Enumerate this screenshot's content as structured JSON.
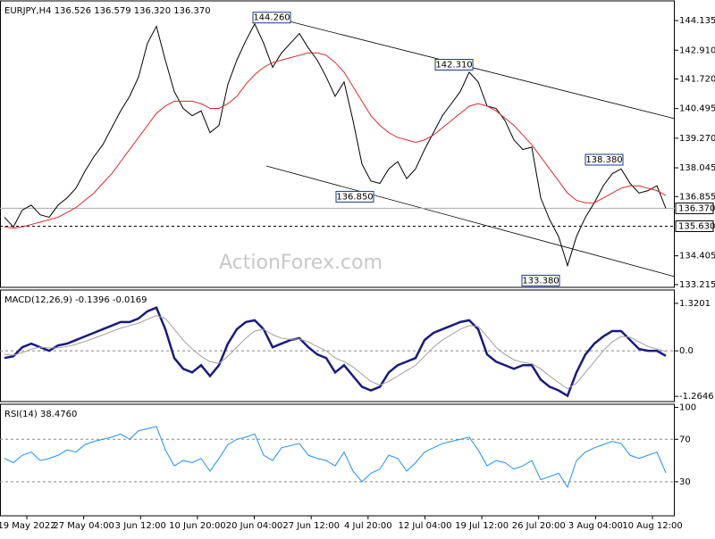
{
  "watermark": "ActionForex.com",
  "chart_data": [
    {
      "type": "line",
      "title": "EURJPY,H4  136.526 136.579 136.320 136.370",
      "ylim": [
        133.1,
        144.95
      ],
      "yticks": [
        144.135,
        {
          "value": 142.91,
          "label": "142.910"
        },
        {
          "value": 141.72,
          "label": "141.720"
        },
        140.495,
        {
          "value": 139.27,
          "label": "139.270"
        },
        138.045,
        136.855,
        134.405,
        133.215
      ],
      "series": [
        {
          "color": "#000000",
          "values": [
            136.0,
            135.6,
            136.3,
            136.5,
            136.1,
            136.0,
            136.5,
            136.8,
            137.2,
            137.9,
            138.5,
            139.0,
            139.7,
            140.4,
            141.0,
            141.8,
            143.2,
            143.9,
            142.5,
            141.2,
            140.5,
            140.2,
            140.4,
            139.5,
            139.8,
            141.5,
            142.5,
            143.3,
            144.0,
            143.2,
            142.2,
            142.8,
            143.2,
            143.6,
            143.0,
            142.5,
            141.8,
            141.0,
            141.6,
            140.0,
            138.2,
            137.5,
            137.4,
            138.0,
            138.3,
            137.6,
            138.0,
            138.8,
            139.5,
            140.2,
            140.7,
            141.2,
            142.0,
            141.6,
            140.6,
            140.5,
            140.0,
            139.2,
            138.8,
            138.9,
            136.8,
            135.9,
            135.2,
            134.0,
            135.2,
            136.0,
            136.6,
            137.3,
            137.8,
            138.0,
            137.4,
            137.0,
            137.1,
            137.3,
            136.37
          ]
        },
        {
          "color": "#e0282c",
          "values": [
            135.6,
            135.55,
            135.6,
            135.7,
            135.8,
            135.9,
            136.0,
            136.2,
            136.4,
            136.7,
            137.0,
            137.4,
            137.8,
            138.3,
            138.8,
            139.3,
            139.8,
            140.3,
            140.6,
            140.8,
            140.8,
            140.8,
            140.7,
            140.5,
            140.5,
            140.7,
            141.0,
            141.5,
            141.9,
            142.2,
            142.4,
            142.5,
            142.6,
            142.7,
            142.8,
            142.8,
            142.7,
            142.4,
            142.0,
            141.4,
            140.8,
            140.2,
            139.8,
            139.5,
            139.3,
            139.2,
            139.1,
            139.2,
            139.4,
            139.7,
            140.0,
            140.3,
            140.6,
            140.7,
            140.6,
            140.4,
            140.1,
            139.8,
            139.4,
            139.0,
            138.5,
            138.0,
            137.5,
            137.0,
            136.7,
            136.6,
            136.6,
            136.8,
            137.0,
            137.2,
            137.3,
            137.3,
            137.2,
            137.1,
            136.9
          ]
        }
      ],
      "annotations": [
        {
          "value": 144.26,
          "label": "144.260"
        },
        {
          "value": 142.31,
          "label": "142.310"
        },
        {
          "value": 136.85,
          "label": "136.850"
        },
        {
          "value": 138.38,
          "label": "138.380"
        },
        {
          "value": 133.38,
          "label": "133.380"
        }
      ],
      "price_lines": [
        {
          "value": 136.37,
          "label": "136.370",
          "style": "solid"
        },
        {
          "value": 135.63,
          "label": "135.630",
          "style": "dashed"
        }
      ]
    },
    {
      "type": "line",
      "title": "MACD(12,26,9) -0.1396 -0.0169",
      "ylim": [
        -1.41,
        1.69
      ],
      "yticks": [
        1.3201,
        {
          "value": 0,
          "label": "0.0"
        },
        -1.2646
      ],
      "levels": [
        0
      ],
      "series": [
        {
          "color": "#1a1a80",
          "values": [
            -0.2,
            -0.15,
            0.1,
            0.2,
            0.1,
            0.0,
            0.15,
            0.2,
            0.3,
            0.4,
            0.5,
            0.6,
            0.7,
            0.8,
            0.8,
            0.9,
            1.1,
            1.2,
            0.6,
            -0.2,
            -0.5,
            -0.6,
            -0.4,
            -0.7,
            -0.4,
            0.2,
            0.6,
            0.8,
            0.85,
            0.6,
            0.1,
            0.2,
            0.3,
            0.35,
            0.1,
            -0.1,
            -0.2,
            -0.6,
            -0.4,
            -0.7,
            -1.0,
            -1.1,
            -1.0,
            -0.6,
            -0.4,
            -0.3,
            -0.2,
            0.3,
            0.5,
            0.6,
            0.7,
            0.8,
            0.85,
            0.6,
            -0.1,
            -0.3,
            -0.4,
            -0.5,
            -0.4,
            -0.4,
            -0.8,
            -1.0,
            -1.1,
            -1.25,
            -0.6,
            -0.1,
            0.2,
            0.4,
            0.55,
            0.55,
            0.3,
            0.05,
            0.0,
            0.0,
            -0.1396
          ]
        },
        {
          "color": "#a0a0a0",
          "values": [
            -0.1,
            -0.12,
            -0.05,
            0.05,
            0.1,
            0.08,
            0.08,
            0.12,
            0.18,
            0.26,
            0.35,
            0.44,
            0.54,
            0.63,
            0.7,
            0.77,
            0.88,
            0.98,
            0.9,
            0.6,
            0.3,
            0.05,
            -0.15,
            -0.3,
            -0.35,
            -0.15,
            0.1,
            0.35,
            0.55,
            0.6,
            0.45,
            0.35,
            0.32,
            0.33,
            0.25,
            0.12,
            0.0,
            -0.2,
            -0.3,
            -0.45,
            -0.65,
            -0.85,
            -0.95,
            -0.85,
            -0.7,
            -0.55,
            -0.4,
            -0.15,
            0.1,
            0.3,
            0.45,
            0.6,
            0.7,
            0.68,
            0.4,
            0.1,
            -0.1,
            -0.25,
            -0.32,
            -0.36,
            -0.5,
            -0.7,
            -0.88,
            -1.05,
            -0.9,
            -0.6,
            -0.3,
            0.0,
            0.25,
            0.4,
            0.38,
            0.25,
            0.12,
            0.05,
            -0.0169
          ]
        }
      ]
    },
    {
      "type": "line",
      "title": "RSI(14) 38.4760",
      "ylim": [
        -2,
        103
      ],
      "yticks": [
        100,
        70,
        30
      ],
      "levels": [
        70,
        30
      ],
      "series": [
        {
          "color": "#1e90ff",
          "values": [
            52,
            48,
            55,
            58,
            50,
            52,
            55,
            60,
            58,
            65,
            68,
            70,
            72,
            75,
            70,
            78,
            80,
            82,
            60,
            45,
            50,
            48,
            52,
            40,
            52,
            65,
            70,
            72,
            75,
            55,
            50,
            62,
            64,
            66,
            55,
            52,
            50,
            45,
            58,
            40,
            30,
            38,
            42,
            55,
            52,
            40,
            48,
            58,
            62,
            66,
            68,
            70,
            72,
            60,
            45,
            50,
            48,
            42,
            45,
            50,
            32,
            35,
            38,
            25,
            50,
            58,
            62,
            65,
            68,
            66,
            55,
            52,
            55,
            58,
            38.476
          ]
        }
      ],
      "xtick_labels": [
        "19 May 2022",
        "27 May 04:00",
        "3 Jun 12:00",
        "10 Jun 20:00",
        "20 Jun 04:00",
        "27 Jun 12:00",
        "4 Jul 20:00",
        "12 Jul 04:00",
        "19 Jul 12:00",
        "26 Jul 20:00",
        "3 Aug 04:00",
        "10 Aug 12:00"
      ]
    }
  ]
}
